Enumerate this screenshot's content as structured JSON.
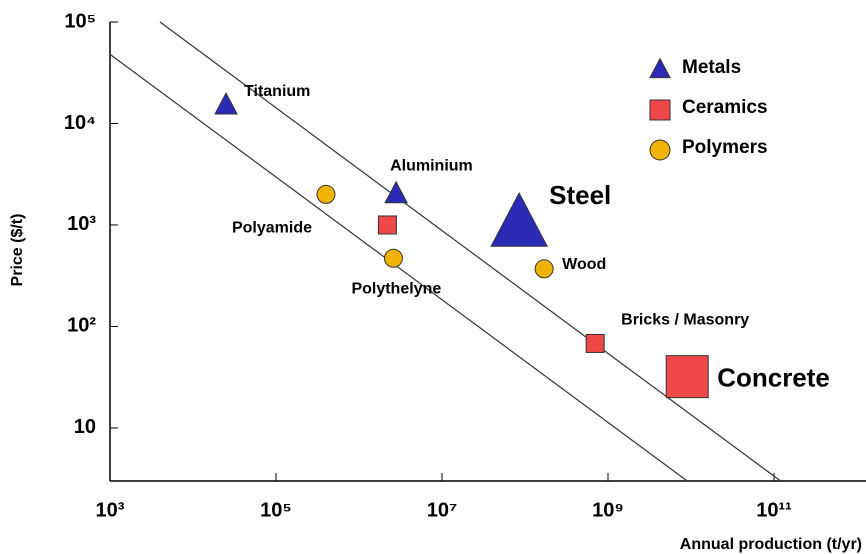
{
  "chart_data": {
    "type": "scatter",
    "x_label": "Annual production (t/yr)",
    "y_label": "Price ($/t)",
    "xscale": "log",
    "yscale": "log",
    "xlim": [
      1000,
      1000000000000
    ],
    "ylim": [
      3,
      100000
    ],
    "xticks": [
      {
        "value": 1000,
        "label": "10³"
      },
      {
        "value": 100000,
        "label": "10⁵"
      },
      {
        "value": 10000000,
        "label": "10⁷"
      },
      {
        "value": 1000000000,
        "label": "10⁹"
      },
      {
        "value": 100000000000,
        "label": "10¹¹"
      }
    ],
    "yticks": [
      10,
      {
        "value": 100,
        "label": "10²"
      },
      {
        "value": 1000,
        "label": "10³"
      },
      {
        "value": 10000,
        "label": "10⁴"
      },
      {
        "value": 100000,
        "label": "10⁵"
      }
    ],
    "legend": "upper right",
    "series": [
      {
        "name": "Metals",
        "marker": "triangle",
        "color": "#2b2bb8",
        "labels": [
          "Titanium",
          "Aluminium",
          "Steel"
        ],
        "x": [
          25000,
          2800000,
          85000000
        ],
        "values": [
          15000,
          2000,
          1000
        ],
        "sizes": [
          22,
          22,
          56
        ]
      },
      {
        "name": "Ceramics",
        "marker": "square",
        "color": "#f04848",
        "labels": [
          null,
          "Bricks / Masonry",
          "Concrete"
        ],
        "x": [
          2200000,
          700000000,
          9000000000
        ],
        "values": [
          1000,
          68,
          32
        ],
        "sizes": [
          18,
          18,
          42
        ]
      },
      {
        "name": "Polymers",
        "marker": "circle",
        "color": "#f0b400",
        "labels": [
          "Polyamide",
          "Polythelyne",
          "Wood"
        ],
        "x": [
          400000,
          2600000,
          170000000
        ],
        "values": [
          2000,
          470,
          370
        ],
        "sizes": [
          18,
          18,
          18
        ]
      }
    ],
    "lines": [
      {
        "x": [
          1000,
          9000000000
        ],
        "values": [
          48000,
          3
        ]
      },
      {
        "x": [
          4000,
          120000000000
        ],
        "values": [
          100000,
          3
        ]
      }
    ]
  }
}
